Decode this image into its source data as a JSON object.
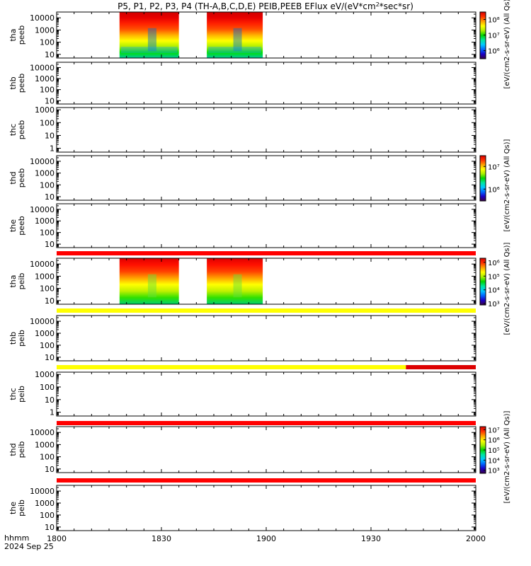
{
  "chart_data": {
    "type": "heatmap",
    "title": "P5, P1, P2, P3, P4 (TH-A,B,C,D,E) PEIB,PEEB EFlux eV/(eV*cm²*sec*sr)",
    "title_parts": {
      "main": "P5, P1, P2, P3, P4 (TH-A,B,C,D,E) PEIB,PEEB EFlux eV/(eV*cm",
      "sup": "2",
      "tail": "*sec*sr)"
    },
    "x_axis": {
      "label": "hhmm",
      "date_label": "2024 Sep 25",
      "ticks": [
        "1800",
        "1830",
        "1900",
        "1930",
        "2000"
      ],
      "range": [
        "18:00",
        "20:00"
      ]
    },
    "colormap": [
      "#3a0044",
      "#1a00c8",
      "#0066ff",
      "#00c8ff",
      "#00e6a0",
      "#00d400",
      "#a8f000",
      "#ffff00",
      "#ffa000",
      "#ff3000",
      "#d80000"
    ],
    "colorbars": [
      {
        "panel": "tha-peeb",
        "ticks": [
          "10⁶",
          "10⁷",
          "10⁸"
        ],
        "values": [
          1000000,
          10000000,
          100000000
        ],
        "range": [
          300000,
          300000000
        ],
        "label": "[eV/(cm2-s-sr-eV) (All Qs)]"
      },
      {
        "panel": "thd-peeb",
        "ticks": [
          "10⁶",
          "10⁷"
        ],
        "values": [
          1000000,
          10000000
        ],
        "range": [
          300000,
          30000000
        ],
        "label": "[eV/(cm2-s-sr-eV) (All Qs)]"
      },
      {
        "panel": "tha-peib",
        "ticks": [
          "10³",
          "10⁴",
          "10⁵",
          "10⁶"
        ],
        "values": [
          1000,
          10000,
          100000,
          1000000
        ],
        "range": [
          800,
          2000000
        ],
        "label": "[eV/(cm2-s-sr-eV) (All Qs)]"
      },
      {
        "panel": "thd-peib",
        "ticks": [
          "10³",
          "10⁴",
          "10⁵",
          "10⁶",
          "10⁷"
        ],
        "values": [
          1000,
          10000,
          100000,
          1000000,
          10000000
        ],
        "range": [
          500,
          20000000
        ],
        "label": "[eV/(cm2-s-sr-eV) (All Qs)]"
      }
    ],
    "series": [
      {
        "probe": "tha",
        "name": "peeb",
        "panel_label": [
          "tha",
          "peeb"
        ],
        "y_ticks": [
          "10000",
          "1000",
          "100",
          "10"
        ],
        "y_values": [
          10000,
          1000,
          100,
          10
        ],
        "ylim": [
          5,
          30000
        ],
        "log": true,
        "coverage": [
          [
            "18:18",
            "18:35"
          ],
          [
            "18:43",
            "18:59"
          ]
        ]
      },
      {
        "probe": "thb",
        "name": "peeb",
        "panel_label": [
          "thb",
          "peeb"
        ],
        "y_ticks": [
          "10000",
          "1000",
          "100",
          "10"
        ],
        "y_values": [
          10000,
          1000,
          100,
          10
        ],
        "ylim": [
          5,
          30000
        ],
        "log": true,
        "coverage": []
      },
      {
        "probe": "thc",
        "name": "peeb",
        "panel_label": [
          "thc",
          "peeb"
        ],
        "y_ticks": [
          "1000",
          "100",
          "10",
          "1"
        ],
        "y_values": [
          1000,
          100,
          10,
          1
        ],
        "ylim": [
          0.5,
          1500
        ],
        "log": true,
        "coverage": []
      },
      {
        "probe": "thd",
        "name": "peeb",
        "panel_label": [
          "thd",
          "peeb"
        ],
        "y_ticks": [
          "10000",
          "1000",
          "100",
          "10"
        ],
        "y_values": [
          10000,
          1000,
          100,
          10
        ],
        "ylim": [
          5,
          30000
        ],
        "log": true,
        "coverage": []
      },
      {
        "probe": "the",
        "name": "peeb",
        "panel_label": [
          "the",
          "peeb"
        ],
        "y_ticks": [
          "10000",
          "1000",
          "100",
          "10"
        ],
        "y_values": [
          10000,
          1000,
          100,
          10
        ],
        "ylim": [
          5,
          30000
        ],
        "log": true,
        "coverage": []
      },
      {
        "probe": "tha",
        "name": "peib",
        "panel_label": [
          "tha",
          "peib"
        ],
        "y_ticks": [
          "10000",
          "1000",
          "100",
          "10"
        ],
        "y_values": [
          10000,
          1000,
          100,
          10
        ],
        "ylim": [
          5,
          30000
        ],
        "log": true,
        "coverage": [
          [
            "18:18",
            "18:35"
          ],
          [
            "18:43",
            "18:59"
          ]
        ]
      },
      {
        "probe": "thb",
        "name": "peib",
        "panel_label": [
          "thb",
          "peib"
        ],
        "y_ticks": [
          "10000",
          "1000",
          "100",
          "10"
        ],
        "y_values": [
          10000,
          1000,
          100,
          10
        ],
        "ylim": [
          5,
          30000
        ],
        "log": true,
        "coverage": []
      },
      {
        "probe": "thc",
        "name": "peib",
        "panel_label": [
          "thc",
          "peib"
        ],
        "y_ticks": [
          "1000",
          "100",
          "10",
          "1"
        ],
        "y_values": [
          1000,
          100,
          10,
          1
        ],
        "ylim": [
          0.5,
          1500
        ],
        "log": true,
        "coverage": []
      },
      {
        "probe": "thd",
        "name": "peib",
        "panel_label": [
          "thd",
          "peib"
        ],
        "y_ticks": [
          "10000",
          "1000",
          "100",
          "10"
        ],
        "y_values": [
          10000,
          1000,
          100,
          10
        ],
        "ylim": [
          5,
          30000
        ],
        "log": true,
        "coverage": []
      },
      {
        "probe": "the",
        "name": "peib",
        "panel_label": [
          "the",
          "peib"
        ],
        "y_ticks": [
          "10000",
          "1000",
          "100",
          "10"
        ],
        "y_values": [
          10000,
          1000,
          100,
          10
        ],
        "ylim": [
          5,
          30000
        ],
        "log": true,
        "coverage": []
      }
    ],
    "status_bars": [
      {
        "after_panel": 4,
        "segments": [
          {
            "from": "18:00",
            "to": "20:00",
            "color": "#ff0000"
          }
        ]
      },
      {
        "after_panel": 5,
        "segments": [
          {
            "from": "18:00",
            "to": "20:00",
            "color": "#ffff00"
          }
        ]
      },
      {
        "after_panel": 6,
        "segments": [
          {
            "from": "18:00",
            "to": "19:40",
            "color": "#ffff00"
          },
          {
            "from": "19:40",
            "to": "20:00",
            "color": "#dd0000"
          }
        ]
      },
      {
        "after_panel": 7,
        "segments": [
          {
            "from": "18:00",
            "to": "20:00",
            "color": "#ff0000"
          }
        ]
      },
      {
        "after_panel": 8,
        "segments": [
          {
            "from": "18:00",
            "to": "20:00",
            "color": "#ff0000"
          }
        ]
      }
    ]
  }
}
